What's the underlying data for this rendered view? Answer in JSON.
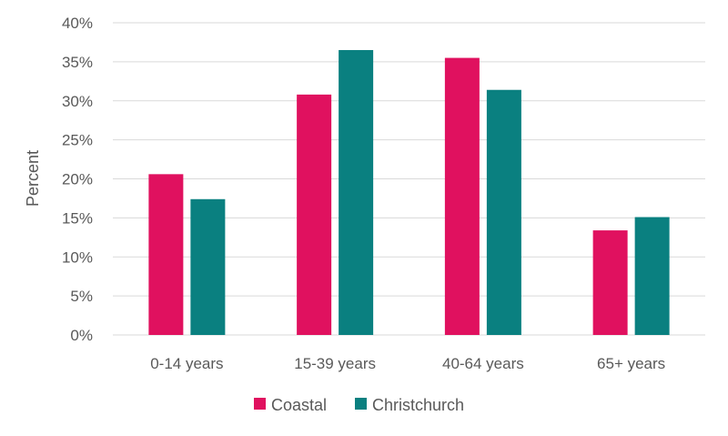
{
  "chart_data": {
    "type": "bar",
    "title": "",
    "xlabel": "",
    "ylabel": "Percent",
    "categories": [
      "0-14 years",
      "15-39 years",
      "40-64 years",
      "65+ years"
    ],
    "series": [
      {
        "name": "Coastal",
        "color": "#e0115f",
        "values": [
          20.6,
          30.8,
          35.5,
          13.4
        ]
      },
      {
        "name": "Christchurch",
        "color": "#0a8080",
        "values": [
          17.4,
          36.5,
          31.4,
          15.1
        ]
      }
    ],
    "ylim": [
      0,
      40
    ],
    "yticks": [
      0,
      5,
      10,
      15,
      20,
      25,
      30,
      35,
      40
    ],
    "ytick_labels": [
      "0%",
      "5%",
      "10%",
      "15%",
      "20%",
      "25%",
      "30%",
      "35%",
      "40%"
    ],
    "grid": true,
    "legend_position": "bottom"
  }
}
